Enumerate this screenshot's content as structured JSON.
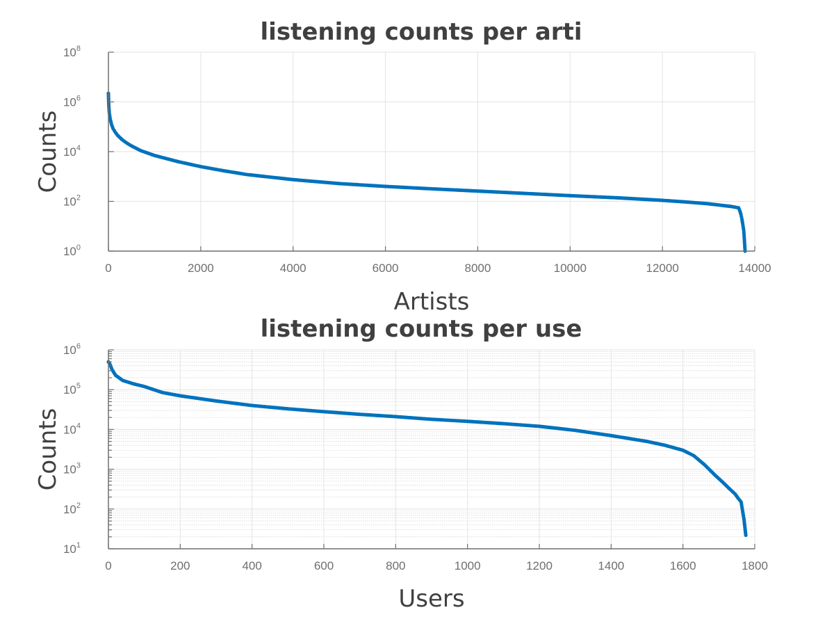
{
  "chart_data": [
    {
      "type": "scatter",
      "title": "listening counts per arti",
      "xlabel": "Artists",
      "ylabel": "Counts",
      "xlim": [
        0,
        14000
      ],
      "ylim": [
        1,
        100000000
      ],
      "yscale": "log",
      "grid": "major",
      "color": "#0072bd",
      "x_ticks": [
        "0",
        "2000",
        "4000",
        "6000",
        "8000",
        "10000",
        "12000",
        "14000"
      ],
      "y_ticks": [
        {
          "base": "10",
          "exp": "0"
        },
        {
          "base": "10",
          "exp": "2"
        },
        {
          "base": "10",
          "exp": "4"
        },
        {
          "base": "10",
          "exp": "6"
        },
        {
          "base": "10",
          "exp": "8"
        }
      ],
      "x": [
        0,
        5,
        10,
        20,
        40,
        70,
        100,
        150,
        200,
        300,
        400,
        500,
        700,
        1000,
        1500,
        2000,
        2500,
        3000,
        4000,
        5000,
        6000,
        7000,
        8000,
        9000,
        10000,
        11000,
        12000,
        12500,
        13000,
        13500,
        13650,
        13680,
        13700,
        13720,
        13740,
        13760,
        13770,
        13780,
        13790
      ],
      "y": [
        2200000,
        1000000,
        600000,
        350000,
        200000,
        120000,
        85000,
        60000,
        45000,
        30000,
        22000,
        17000,
        11000,
        7000,
        4000,
        2500,
        1700,
        1200,
        750,
        520,
        400,
        320,
        260,
        210,
        170,
        140,
        110,
        95,
        80,
        62,
        55,
        40,
        30,
        20,
        12,
        7,
        4,
        2,
        1
      ]
    },
    {
      "type": "scatter",
      "title": "listening counts per use",
      "xlabel": "Users",
      "ylabel": "Counts",
      "xlim": [
        0,
        1800
      ],
      "ylim": [
        10,
        1000000
      ],
      "yscale": "log",
      "grid": "major+minor",
      "color": "#0072bd",
      "x_ticks": [
        "0",
        "200",
        "400",
        "600",
        "800",
        "1000",
        "1200",
        "1400",
        "1600",
        "1800"
      ],
      "y_ticks": [
        {
          "base": "10",
          "exp": "1"
        },
        {
          "base": "10",
          "exp": "2"
        },
        {
          "base": "10",
          "exp": "3"
        },
        {
          "base": "10",
          "exp": "4"
        },
        {
          "base": "10",
          "exp": "5"
        },
        {
          "base": "10",
          "exp": "6"
        }
      ],
      "x": [
        0,
        5,
        10,
        20,
        40,
        70,
        100,
        150,
        200,
        300,
        400,
        500,
        600,
        700,
        800,
        900,
        1000,
        1100,
        1200,
        1300,
        1400,
        1500,
        1550,
        1600,
        1630,
        1660,
        1690,
        1710,
        1730,
        1745,
        1755,
        1762,
        1766,
        1770,
        1775
      ],
      "y": [
        500000,
        420000,
        320000,
        230000,
        170000,
        140000,
        120000,
        85000,
        70000,
        52000,
        40000,
        33000,
        28000,
        24000,
        21000,
        18000,
        16000,
        14000,
        12000,
        9500,
        7000,
        5000,
        4000,
        3000,
        2200,
        1300,
        700,
        480,
        320,
        240,
        180,
        150,
        90,
        55,
        22
      ]
    }
  ]
}
